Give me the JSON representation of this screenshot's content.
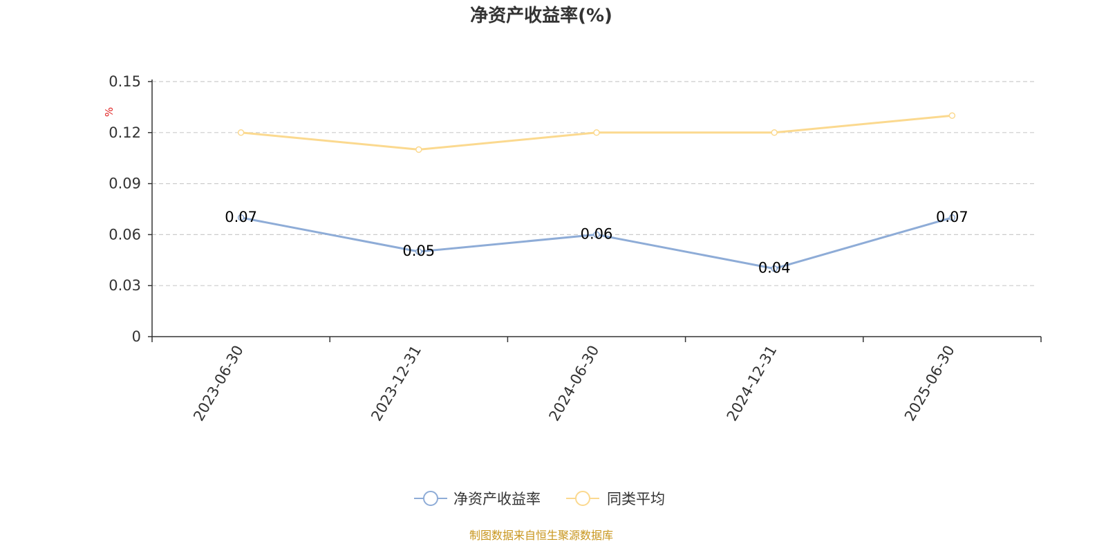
{
  "chart_data": {
    "type": "line",
    "title": "净资产收益率(%)",
    "ylabel": "%",
    "categories": [
      "2023-06-30",
      "2023-12-31",
      "2024-06-30",
      "2024-12-31",
      "2025-06-30"
    ],
    "ylim": [
      0,
      0.15
    ],
    "yticks": [
      "0",
      "0.03",
      "0.06",
      "0.09",
      "0.12",
      "0.15"
    ],
    "grid": true,
    "legend_position": "bottom",
    "series": [
      {
        "name": "净资产收益率",
        "values": [
          0.07,
          0.05,
          0.06,
          0.04,
          0.07
        ],
        "labels": [
          "0.07",
          "0.05",
          "0.06",
          "0.04",
          "0.07"
        ],
        "color": "#8eacd7"
      },
      {
        "name": "同类平均",
        "values": [
          0.12,
          0.11,
          0.12,
          0.12,
          0.13
        ],
        "color": "#fbd98f"
      }
    ]
  },
  "source_note": "制图数据来自恒生聚源数据库",
  "colors": {
    "axis": "#333333",
    "grid": "#cccccc",
    "unit_label": "#e02020",
    "source_note": "#c8961e"
  }
}
